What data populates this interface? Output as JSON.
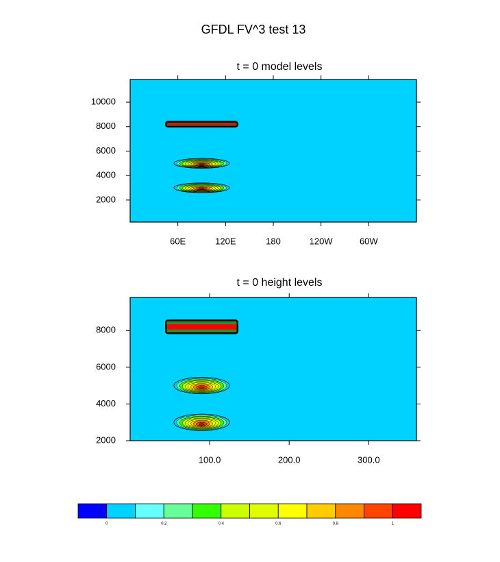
{
  "title": "GFDL FV^3 test 13",
  "chart_data": [
    {
      "type": "contour",
      "title": "t = 0 model levels",
      "xlim": [
        0,
        360
      ],
      "xticks": [
        {
          "value": 60,
          "label": "60E"
        },
        {
          "value": 120,
          "label": "120E"
        },
        180,
        {
          "value": 240,
          "label": "120W"
        },
        {
          "value": 300,
          "label": "60W"
        }
      ],
      "ylim": [
        200,
        11850
      ],
      "yticks": [
        2000,
        4000,
        6000,
        8000,
        10000
      ],
      "features": [
        {
          "shape": "slab",
          "x": [
            45,
            135
          ],
          "y": [
            8000,
            8400
          ]
        },
        {
          "shape": "blob",
          "x": 90,
          "y": 5000,
          "rx": 35,
          "ry": 400
        },
        {
          "shape": "blob",
          "x": 90,
          "y": 3000,
          "rx": 35,
          "ry": 400
        }
      ]
    },
    {
      "type": "contour",
      "title": "t = 0 height levels",
      "xlim": [
        0,
        360
      ],
      "xticks": [
        {
          "value": 100,
          "label": "100.0"
        },
        {
          "value": 200,
          "label": "200.0"
        },
        {
          "value": 300,
          "label": "300.0"
        }
      ],
      "ylim": [
        2000,
        9800
      ],
      "yticks": [
        2000,
        4000,
        6000,
        8000
      ],
      "features": [
        {
          "shape": "slab",
          "x": [
            45,
            135
          ],
          "y": [
            7850,
            8550
          ]
        },
        {
          "shape": "blob",
          "x": 90,
          "y": 5000,
          "rx": 35,
          "ry": 450
        },
        {
          "shape": "blob",
          "x": 90,
          "y": 3000,
          "rx": 35,
          "ry": 450
        }
      ]
    }
  ],
  "colorbar": {
    "levels": [
      0,
      0.1,
      0.2,
      0.3,
      0.4,
      0.5,
      0.6,
      0.7,
      0.8,
      0.9,
      1
    ],
    "ticks": [
      0,
      0.2,
      0.4,
      0.6,
      0.8,
      1
    ],
    "colors": [
      "#0000ff",
      "#00d2ff",
      "#66ffff",
      "#66ff99",
      "#33ff00",
      "#ccff00",
      "#dfff00",
      "#ffff00",
      "#ffcc00",
      "#ff8800",
      "#ff4400",
      "#ff0000"
    ]
  }
}
